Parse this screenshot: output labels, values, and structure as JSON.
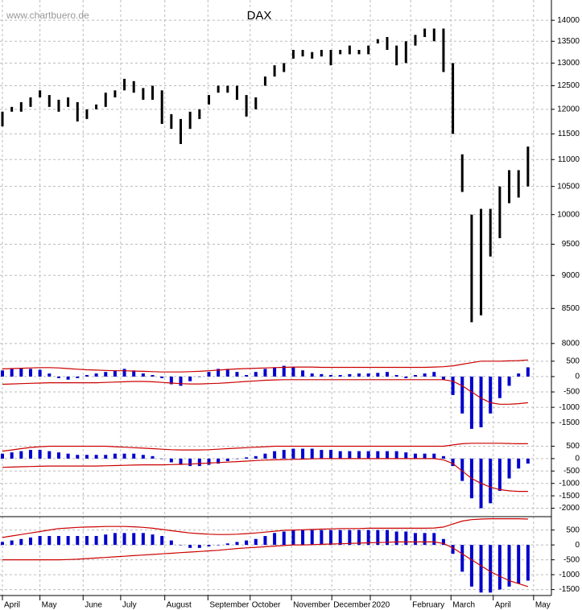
{
  "chart_data": [
    {
      "type": "range",
      "title": "DAX",
      "source": "www.chartbuero.de",
      "color": "#000000",
      "log": true,
      "grid": true,
      "ylim": [
        7800,
        14500
      ],
      "yticks": [
        8000,
        8500,
        9000,
        9500,
        10000,
        10500,
        11000,
        11500,
        12000,
        12500,
        13000,
        13500,
        14000
      ],
      "xlim": [
        0,
        58.5
      ],
      "x": [
        0,
        1,
        2,
        3,
        4,
        5,
        6,
        7,
        8,
        9,
        10,
        11,
        12,
        13,
        14,
        15,
        16,
        17,
        18,
        19,
        20,
        21,
        22,
        23,
        24,
        25,
        26,
        27,
        28,
        29,
        30,
        31,
        32,
        33,
        34,
        35,
        36,
        37,
        38,
        39,
        40,
        41,
        42,
        43,
        44,
        45,
        46,
        47,
        48,
        49,
        50,
        51,
        52,
        53,
        54,
        55,
        56
      ],
      "high": [
        11950,
        12050,
        12150,
        12250,
        12400,
        12300,
        12200,
        12250,
        12150,
        12000,
        12100,
        12350,
        12400,
        12650,
        12600,
        12450,
        12500,
        12400,
        11900,
        11800,
        11950,
        12000,
        12300,
        12500,
        12500,
        12500,
        12300,
        12250,
        12700,
        12950,
        13000,
        13300,
        13300,
        13250,
        13300,
        13300,
        13300,
        13400,
        13300,
        13400,
        13550,
        13600,
        13400,
        13500,
        13650,
        13800,
        13800,
        13800,
        13000,
        11100,
        10000,
        10100,
        10100,
        10500,
        10800,
        10800,
        11250
      ],
      "low": [
        11650,
        11950,
        11950,
        12050,
        12250,
        12050,
        11950,
        12050,
        11750,
        11800,
        12000,
        12050,
        12250,
        12400,
        12350,
        12200,
        12200,
        11700,
        11600,
        11300,
        11600,
        11800,
        12100,
        12350,
        12350,
        12200,
        11850,
        12000,
        12500,
        12700,
        12800,
        13100,
        13150,
        13100,
        13150,
        12950,
        13200,
        13200,
        13200,
        13200,
        13450,
        13300,
        12950,
        13000,
        13400,
        13600,
        13500,
        12800,
        11500,
        10400,
        8300,
        8400,
        9300,
        9600,
        10200,
        10300,
        10500
      ]
    },
    {
      "type": "combo",
      "grid": true,
      "ylim": [
        -2200,
        600
      ],
      "yticks": [
        500,
        0,
        -500,
        -1000,
        -1500
      ],
      "series": [
        {
          "mark": "bar",
          "color": "#0000cc",
          "values": [
            200,
            250,
            280,
            250,
            220,
            100,
            -50,
            -100,
            -50,
            50,
            100,
            150,
            200,
            250,
            200,
            100,
            50,
            -50,
            -250,
            -300,
            -150,
            0,
            150,
            250,
            250,
            150,
            50,
            150,
            250,
            300,
            350,
            300,
            200,
            100,
            80,
            50,
            50,
            80,
            100,
            100,
            120,
            150,
            50,
            -50,
            50,
            100,
            150,
            -100,
            -600,
            -1200,
            -1700,
            -1650,
            -1200,
            -700,
            -300,
            100,
            300
          ]
        },
        {
          "mark": "line",
          "color": "#cc0000",
          "values": [
            250,
            260,
            270,
            280,
            290,
            290,
            280,
            260,
            240,
            220,
            210,
            200,
            190,
            190,
            180,
            170,
            160,
            150,
            150,
            150,
            160,
            170,
            190,
            210,
            230,
            250,
            260,
            270,
            280,
            290,
            300,
            310,
            310,
            310,
            300,
            300,
            300,
            300,
            300,
            300,
            300,
            300,
            300,
            300,
            300,
            300,
            310,
            320,
            350,
            400,
            450,
            500,
            500,
            500,
            510,
            520,
            540
          ]
        },
        {
          "mark": "line",
          "color": "#cc0000",
          "values": [
            -250,
            -240,
            -230,
            -220,
            -210,
            -200,
            -200,
            -200,
            -200,
            -200,
            -200,
            -190,
            -180,
            -170,
            -160,
            -160,
            -170,
            -190,
            -210,
            -230,
            -240,
            -240,
            -230,
            -220,
            -200,
            -180,
            -160,
            -140,
            -120,
            -110,
            -100,
            -100,
            -100,
            -100,
            -100,
            -100,
            -100,
            -100,
            -100,
            -100,
            -100,
            -100,
            -100,
            -100,
            -100,
            -100,
            -100,
            -100,
            -150,
            -300,
            -500,
            -700,
            -850,
            -900,
            -900,
            -880,
            -850
          ]
        }
      ]
    },
    {
      "type": "combo",
      "grid": true,
      "ylim": [
        -2340,
        580
      ],
      "yticks": [
        500,
        0,
        -500,
        -1000,
        -1500,
        -2000
      ],
      "series": [
        {
          "mark": "bar",
          "color": "#0000cc",
          "values": [
            200,
            250,
            300,
            350,
            350,
            300,
            250,
            200,
            150,
            150,
            150,
            150,
            200,
            200,
            200,
            150,
            100,
            0,
            -150,
            -250,
            -300,
            -300,
            -250,
            -200,
            -100,
            0,
            50,
            100,
            200,
            300,
            350,
            400,
            400,
            400,
            350,
            350,
            300,
            300,
            300,
            300,
            300,
            300,
            300,
            250,
            200,
            200,
            200,
            100,
            -300,
            -900,
            -1600,
            -2000,
            -1800,
            -1300,
            -800,
            -400,
            -200
          ]
        },
        {
          "mark": "line",
          "color": "#cc0000",
          "values": [
            300,
            350,
            400,
            450,
            480,
            500,
            500,
            500,
            500,
            500,
            500,
            500,
            480,
            460,
            440,
            420,
            400,
            380,
            360,
            350,
            350,
            350,
            360,
            380,
            400,
            420,
            440,
            460,
            480,
            500,
            500,
            500,
            500,
            500,
            500,
            500,
            500,
            500,
            500,
            500,
            500,
            500,
            500,
            500,
            500,
            500,
            500,
            500,
            550,
            600,
            620,
            620,
            620,
            620,
            610,
            600,
            600
          ]
        },
        {
          "mark": "line",
          "color": "#cc0000",
          "values": [
            -350,
            -340,
            -330,
            -320,
            -310,
            -300,
            -300,
            -300,
            -300,
            -300,
            -300,
            -290,
            -280,
            -270,
            -260,
            -250,
            -250,
            -250,
            -240,
            -230,
            -220,
            -200,
            -180,
            -160,
            -140,
            -120,
            -100,
            -80,
            -60,
            -50,
            -40,
            -30,
            -20,
            -10,
            0,
            0,
            0,
            0,
            0,
            0,
            0,
            0,
            0,
            0,
            0,
            0,
            0,
            -50,
            -200,
            -500,
            -800,
            -1000,
            -1150,
            -1250,
            -1300,
            -1320,
            -1320
          ]
        }
      ]
    },
    {
      "type": "combo",
      "grid": true,
      "ylim": [
        -1700,
        950
      ],
      "yticks": [
        500,
        0,
        -500,
        -1000,
        -1500
      ],
      "xticks": [
        {
          "value": 0,
          "label": "April"
        },
        {
          "value": 4.0,
          "label": "May"
        },
        {
          "value": 8.6,
          "label": "June"
        },
        {
          "value": 12.6,
          "label": "July"
        },
        {
          "value": 17.3,
          "label": "August"
        },
        {
          "value": 21.9,
          "label": "September"
        },
        {
          "value": 26.4,
          "label": "October"
        },
        {
          "value": 30.8,
          "label": "November"
        },
        {
          "value": 35.1,
          "label": "December"
        },
        {
          "value": 39.2,
          "label": "2020"
        },
        {
          "value": 43.5,
          "label": "February"
        },
        {
          "value": 47.8,
          "label": "March"
        },
        {
          "value": 52.3,
          "label": "April"
        },
        {
          "value": 56.6,
          "label": "May"
        }
      ],
      "series": [
        {
          "mark": "bar",
          "color": "#0000cc",
          "values": [
            100,
            150,
            200,
            250,
            300,
            300,
            300,
            300,
            300,
            300,
            300,
            350,
            400,
            400,
            400,
            400,
            350,
            300,
            150,
            0,
            -100,
            -100,
            -50,
            0,
            50,
            100,
            150,
            200,
            300,
            400,
            450,
            500,
            500,
            500,
            500,
            500,
            500,
            500,
            500,
            500,
            500,
            500,
            450,
            450,
            400,
            400,
            400,
            200,
            -300,
            -900,
            -1400,
            -1600,
            -1600,
            -1500,
            -1400,
            -1300,
            -1200
          ]
        },
        {
          "mark": "line",
          "color": "#cc0000",
          "values": [
            250,
            300,
            350,
            400,
            450,
            500,
            550,
            570,
            590,
            600,
            610,
            620,
            620,
            620,
            610,
            590,
            560,
            520,
            480,
            440,
            400,
            380,
            360,
            350,
            350,
            360,
            380,
            400,
            430,
            460,
            490,
            500,
            510,
            520,
            530,
            540,
            550,
            550,
            550,
            560,
            560,
            560,
            560,
            560,
            560,
            560,
            570,
            600,
            700,
            800,
            850,
            870,
            880,
            880,
            880,
            880,
            870
          ]
        },
        {
          "mark": "line",
          "color": "#cc0000",
          "values": [
            -500,
            -500,
            -500,
            -500,
            -500,
            -500,
            -500,
            -490,
            -480,
            -460,
            -440,
            -420,
            -400,
            -380,
            -360,
            -340,
            -320,
            -300,
            -280,
            -260,
            -240,
            -220,
            -200,
            -180,
            -150,
            -120,
            -100,
            -80,
            -60,
            -40,
            -20,
            0,
            0,
            10,
            20,
            30,
            40,
            50,
            60,
            70,
            80,
            90,
            100,
            100,
            100,
            100,
            100,
            50,
            -100,
            -300,
            -500,
            -700,
            -900,
            -1050,
            -1200,
            -1300,
            -1400
          ]
        }
      ]
    }
  ]
}
